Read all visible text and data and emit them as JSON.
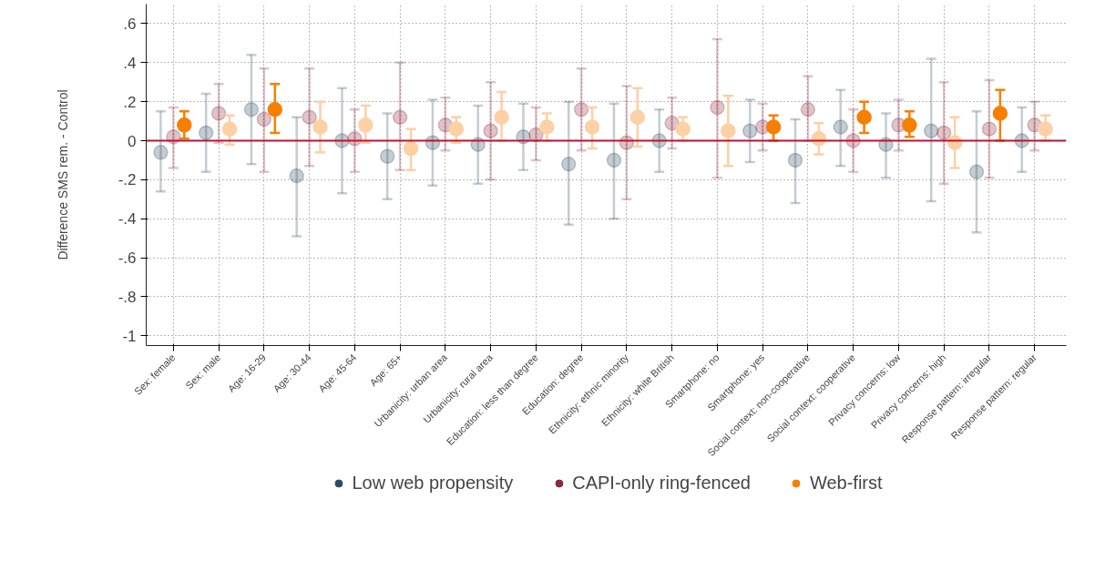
{
  "chart_data": {
    "type": "scatter",
    "ylabel": "Difference SMS rem. - Control",
    "categories": [
      "Sex: female",
      "Sex: male",
      "Age: 16-29",
      "Age: 30-44",
      "Age: 45-64",
      "Age: 65+",
      "Urbanicity: urban area",
      "Urbanicity: rural area",
      "Education: less than degree",
      "Education: degree",
      "Ethnicity: ethnic minority",
      "Ethnicity: white British",
      "Smartphone: no",
      "Smartphone: yes",
      "Social context: non-cooperative",
      "Social context: cooperative",
      "Privacy concerns: low",
      "Privacy concerns: high",
      "Response pattern: irregular",
      "Response pattern: regular"
    ],
    "series": [
      {
        "name": "Low web propensity",
        "color": "#2e4d62",
        "values": [
          -0.06,
          0.04,
          0.16,
          -0.18,
          0.0,
          -0.08,
          -0.01,
          -0.02,
          0.02,
          -0.12,
          -0.1,
          0.0,
          null,
          0.05,
          -0.1,
          0.07,
          -0.02,
          0.05,
          -0.16,
          0.0
        ],
        "errors": [
          [
            -0.26,
            0.15
          ],
          [
            -0.16,
            0.24
          ],
          [
            -0.12,
            0.44
          ],
          [
            -0.49,
            0.12
          ],
          [
            -0.27,
            0.27
          ],
          [
            -0.3,
            0.14
          ],
          [
            -0.23,
            0.21
          ],
          [
            -0.22,
            0.18
          ],
          [
            -0.15,
            0.19
          ],
          [
            -0.43,
            0.2
          ],
          [
            -0.4,
            0.19
          ],
          [
            -0.16,
            0.16
          ],
          null,
          [
            -0.11,
            0.21
          ],
          [
            -0.32,
            0.11
          ],
          [
            -0.13,
            0.26
          ],
          [
            -0.19,
            0.14
          ],
          [
            -0.31,
            0.42
          ],
          [
            -0.47,
            0.15
          ],
          [
            -0.16,
            0.17
          ]
        ]
      },
      {
        "name": "CAPI-only ring-fenced",
        "color": "#8b2c3c",
        "values": [
          0.02,
          0.14,
          0.11,
          0.12,
          0.01,
          0.12,
          0.08,
          0.05,
          0.03,
          0.16,
          -0.01,
          0.09,
          0.17,
          0.07,
          0.16,
          0.0,
          0.08,
          0.04,
          0.06,
          0.08
        ],
        "errors": [
          [
            -0.14,
            0.17
          ],
          [
            -0.01,
            0.29
          ],
          [
            -0.16,
            0.37
          ],
          [
            -0.13,
            0.37
          ],
          [
            -0.16,
            0.16
          ],
          [
            -0.15,
            0.4
          ],
          [
            -0.05,
            0.22
          ],
          [
            -0.2,
            0.3
          ],
          [
            -0.1,
            0.17
          ],
          [
            -0.05,
            0.37
          ],
          [
            -0.3,
            0.28
          ],
          [
            -0.04,
            0.22
          ],
          [
            -0.19,
            0.52
          ],
          [
            -0.05,
            0.19
          ],
          [
            0.0,
            0.33
          ],
          [
            -0.16,
            0.16
          ],
          [
            -0.05,
            0.21
          ],
          [
            -0.22,
            0.3
          ],
          [
            -0.19,
            0.31
          ],
          [
            -0.05,
            0.2
          ]
        ]
      },
      {
        "name": "Web-first",
        "color": "#f77f00",
        "colors": [
          "#f77f00",
          "#fdd0a5",
          "#f77f00",
          "#fdd0a5",
          "#fdd0a5",
          "#fdd0a5",
          "#fdd0a5",
          "#fdd0a5",
          "#fdd0a5",
          "#fdd0a5",
          "#fdd0a5",
          "#fdd0a5",
          "#fdd0a5",
          "#f77f00",
          "#fdd0a5",
          "#f77f00",
          "#f77f00",
          "#fdd0a5",
          "#f77f00",
          "#fdd0a5"
        ],
        "values": [
          0.08,
          0.06,
          0.16,
          0.07,
          0.08,
          -0.04,
          0.06,
          0.12,
          0.07,
          0.07,
          0.12,
          0.06,
          0.05,
          0.07,
          0.01,
          0.12,
          0.08,
          -0.01,
          0.14,
          0.06
        ],
        "errors": [
          [
            0.01,
            0.15
          ],
          [
            -0.02,
            0.13
          ],
          [
            0.04,
            0.29
          ],
          [
            -0.06,
            0.2
          ],
          [
            -0.01,
            0.18
          ],
          [
            -0.15,
            0.06
          ],
          [
            -0.01,
            0.12
          ],
          [
            0.0,
            0.25
          ],
          [
            0.0,
            0.14
          ],
          [
            -0.04,
            0.17
          ],
          [
            -0.03,
            0.27
          ],
          [
            0.0,
            0.12
          ],
          [
            -0.13,
            0.23
          ],
          [
            0.0,
            0.13
          ],
          [
            -0.07,
            0.09
          ],
          [
            0.04,
            0.2
          ],
          [
            0.02,
            0.15
          ],
          [
            -0.14,
            0.12
          ],
          [
            0.0,
            0.26
          ],
          [
            0.0,
            0.13
          ]
        ]
      }
    ],
    "ylim": [
      -1.05,
      0.7
    ],
    "yticks": [
      {
        "value": 0.6,
        "label": ".6"
      },
      {
        "value": 0.4,
        "label": ".4"
      },
      {
        "value": 0.2,
        "label": ".2"
      },
      0,
      {
        "value": -0.2,
        "label": "-.2"
      },
      {
        "value": -0.4,
        "label": "-.4"
      },
      {
        "value": -0.6,
        "label": "-.6"
      },
      {
        "value": -0.8,
        "label": "-.8"
      },
      -1
    ],
    "ref_lines": [
      {
        "axis": "y",
        "value": 0,
        "color": "#c8102e"
      }
    ],
    "grid": true,
    "legend": "bottom",
    "marker": "circle"
  }
}
